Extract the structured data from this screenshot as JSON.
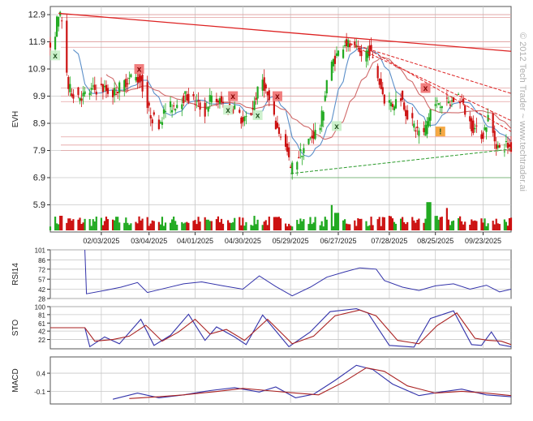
{
  "watermark": "© 2012 Tech Trader ~ www.techtrader.ai",
  "colors": {
    "up": "#22aa22",
    "down": "#cc1111",
    "grid": "#c8c8c8",
    "ma_short": "#5b8fc9",
    "ma_long": "#d06a6a",
    "trend": "#dd2222",
    "support": "#2a9a2a",
    "indicator_line": "#3333aa",
    "signal_line": "#aa2222",
    "sell_marker": "#f07070",
    "buy_marker": "#c8f0c8",
    "alert_marker": "#f5a030"
  },
  "chart_data": [
    {
      "type": "candlestick",
      "ylabel": "EVH",
      "y_ticks": [
        12.9,
        11.9,
        10.9,
        9.9,
        8.9,
        7.9,
        6.9,
        5.9
      ],
      "ylim": [
        4.9,
        13.2
      ],
      "x_ticks": [
        "02/03/2025",
        "03/04/2025",
        "04/01/2025",
        "04/30/2025",
        "05/29/2025",
        "06/27/2025",
        "07/28/2025",
        "08/25/2025",
        "09/23/2025"
      ],
      "x_range": [
        "2025-01-03",
        "2025-10-10"
      ],
      "grid": true,
      "close_path": [
        [
          "2025-01-03",
          11.5
        ],
        [
          "2025-01-06",
          12.3
        ],
        [
          "2025-01-08",
          13.0
        ],
        [
          "2025-01-10",
          12.6
        ],
        [
          "2025-01-14",
          10.2
        ],
        [
          "2025-01-17",
          10.0
        ],
        [
          "2025-01-23",
          9.9
        ],
        [
          "2025-01-28",
          10.1
        ],
        [
          "2025-02-03",
          10.2
        ],
        [
          "2025-02-10",
          10.0
        ],
        [
          "2025-02-17",
          10.4
        ],
        [
          "2025-02-21",
          10.6
        ],
        [
          "2025-02-27",
          10.5
        ],
        [
          "2025-03-03",
          9.5
        ],
        [
          "2025-03-06",
          9.1
        ],
        [
          "2025-03-10",
          8.9
        ],
        [
          "2025-03-14",
          9.4
        ],
        [
          "2025-03-20",
          9.6
        ],
        [
          "2025-03-26",
          9.9
        ],
        [
          "2025-04-01",
          9.7
        ],
        [
          "2025-04-07",
          9.3
        ],
        [
          "2025-04-10",
          9.8
        ],
        [
          "2025-04-16",
          9.7
        ],
        [
          "2025-04-22",
          9.4
        ],
        [
          "2025-04-25",
          9.5
        ],
        [
          "2025-04-30",
          8.9
        ],
        [
          "2025-05-05",
          9.3
        ],
        [
          "2025-05-08",
          9.9
        ],
        [
          "2025-05-12",
          10.5
        ],
        [
          "2025-05-15",
          9.9
        ],
        [
          "2025-05-20",
          8.8
        ],
        [
          "2025-05-23",
          8.5
        ],
        [
          "2025-05-27",
          7.8
        ],
        [
          "2025-05-29",
          7.2
        ],
        [
          "2025-06-02",
          7.6
        ],
        [
          "2025-06-06",
          8.0
        ],
        [
          "2025-06-11",
          8.4
        ],
        [
          "2025-06-16",
          8.8
        ],
        [
          "2025-06-18",
          9.5
        ],
        [
          "2025-06-20",
          10.5
        ],
        [
          "2025-06-24",
          11.2
        ],
        [
          "2025-06-27",
          11.5
        ],
        [
          "2025-07-01",
          11.9
        ],
        [
          "2025-07-07",
          11.6
        ],
        [
          "2025-07-11",
          11.4
        ],
        [
          "2025-07-16",
          11.6
        ],
        [
          "2025-07-21",
          10.6
        ],
        [
          "2025-07-25",
          9.8
        ],
        [
          "2025-07-30",
          9.6
        ],
        [
          "2025-08-04",
          9.9
        ],
        [
          "2025-08-08",
          9.2
        ],
        [
          "2025-08-13",
          8.7
        ],
        [
          "2025-08-18",
          8.5
        ],
        [
          "2025-08-22",
          9.4
        ],
        [
          "2025-08-27",
          9.7
        ],
        [
          "2025-09-02",
          9.6
        ],
        [
          "2025-09-08",
          9.9
        ],
        [
          "2025-09-11",
          9.5
        ],
        [
          "2025-09-15",
          8.9
        ],
        [
          "2025-09-19",
          8.6
        ],
        [
          "2025-09-23",
          8.5
        ],
        [
          "2025-09-26",
          9.1
        ],
        [
          "2025-09-30",
          8.3
        ],
        [
          "2025-10-03",
          7.9
        ],
        [
          "2025-10-07",
          8.1
        ],
        [
          "2025-10-10",
          8.0
        ]
      ],
      "trend_lines": [
        {
          "style": "solid",
          "from": [
            "2025-01-08",
            12.95
          ],
          "to": [
            "2025-10-10",
            11.55
          ]
        },
        {
          "style": "dashed",
          "from": [
            "2025-07-01",
            11.9
          ],
          "to": [
            "2025-10-10",
            10.0
          ]
        },
        {
          "style": "dashed",
          "from": [
            "2025-07-01",
            11.9
          ],
          "to": [
            "2025-10-10",
            9.0
          ]
        },
        {
          "style": "dashed",
          "from": [
            "2025-07-16",
            11.6
          ],
          "to": [
            "2025-10-10",
            8.6
          ]
        }
      ],
      "support_lines": [
        {
          "style": "dashed",
          "from": [
            "2025-05-29",
            7.05
          ],
          "to": [
            "2025-10-10",
            7.95
          ]
        },
        {
          "style": "solid",
          "from": [
            "2025-05-29",
            6.9
          ],
          "to": [
            "2025-10-10",
            6.9
          ]
        }
      ],
      "resistance_levels": [
        12.9,
        12.8,
        11.9,
        11.7,
        10.2,
        9.9,
        9.7,
        8.4,
        8.1,
        7.9
      ],
      "markers": [
        {
          "label": "x",
          "kind": "buy",
          "date": "2025-01-06",
          "y": 11.4
        },
        {
          "label": "x",
          "kind": "sell",
          "date": "2025-02-26",
          "y": 10.9
        },
        {
          "label": "x",
          "kind": "sell",
          "date": "2025-04-24",
          "y": 9.9
        },
        {
          "label": "x",
          "kind": "buy",
          "date": "2025-04-21",
          "y": 9.4
        },
        {
          "label": "x",
          "kind": "buy",
          "date": "2025-05-09",
          "y": 9.2
        },
        {
          "label": "x",
          "kind": "sell",
          "date": "2025-05-21",
          "y": 9.9
        },
        {
          "label": "x",
          "kind": "buy",
          "date": "2025-06-26",
          "y": 8.8
        },
        {
          "label": "x",
          "kind": "sell",
          "date": "2025-08-19",
          "y": 10.2
        },
        {
          "label": "!",
          "kind": "alert",
          "date": "2025-08-28",
          "y": 8.6
        }
      ]
    },
    {
      "type": "bar",
      "name": "volume",
      "description_colors": "green on up days, red on down days",
      "tall_bars": [
        [
          "2025-06-22",
          0.52
        ],
        [
          "2025-06-26",
          0.36
        ],
        [
          "2025-08-21",
          0.58
        ],
        [
          "2025-08-31",
          0.46
        ],
        [
          "2025-01-10",
          0.3
        ]
      ]
    },
    {
      "type": "line",
      "ylabel": "RSI14",
      "y_ticks": [
        101,
        86,
        72,
        57,
        42,
        28
      ],
      "ylim": [
        28,
        101
      ],
      "path": [
        [
          "2025-01-24",
          101
        ],
        [
          "2025-01-25",
          35
        ],
        [
          "2025-02-05",
          40
        ],
        [
          "2025-02-15",
          45
        ],
        [
          "2025-02-25",
          52
        ],
        [
          "2025-03-03",
          37
        ],
        [
          "2025-03-13",
          43
        ],
        [
          "2025-03-25",
          50
        ],
        [
          "2025-04-05",
          53
        ],
        [
          "2025-04-18",
          47
        ],
        [
          "2025-04-30",
          42
        ],
        [
          "2025-05-10",
          62
        ],
        [
          "2025-05-20",
          46
        ],
        [
          "2025-05-30",
          32
        ],
        [
          "2025-06-10",
          45
        ],
        [
          "2025-06-20",
          60
        ],
        [
          "2025-07-01",
          68
        ],
        [
          "2025-07-10",
          74
        ],
        [
          "2025-07-20",
          72
        ],
        [
          "2025-07-25",
          55
        ],
        [
          "2025-08-05",
          45
        ],
        [
          "2025-08-15",
          40
        ],
        [
          "2025-08-25",
          47
        ],
        [
          "2025-09-05",
          50
        ],
        [
          "2025-09-15",
          42
        ],
        [
          "2025-09-25",
          48
        ],
        [
          "2025-10-03",
          38
        ],
        [
          "2025-10-10",
          42
        ]
      ]
    },
    {
      "type": "line",
      "ylabel": "STO",
      "y_ticks": [
        100,
        81,
        61,
        42,
        22
      ],
      "ylim": [
        0,
        100
      ],
      "series": [
        {
          "role": "fast",
          "path": [
            [
              "2025-01-03",
              50
            ],
            [
              "2025-01-24",
              50
            ],
            [
              "2025-01-27",
              5
            ],
            [
              "2025-02-05",
              28
            ],
            [
              "2025-02-14",
              12
            ],
            [
              "2025-02-27",
              70
            ],
            [
              "2025-03-07",
              8
            ],
            [
              "2025-03-17",
              32
            ],
            [
              "2025-03-28",
              82
            ],
            [
              "2025-04-07",
              20
            ],
            [
              "2025-04-14",
              52
            ],
            [
              "2025-04-25",
              28
            ],
            [
              "2025-05-02",
              10
            ],
            [
              "2025-05-12",
              80
            ],
            [
              "2025-05-28",
              5
            ],
            [
              "2025-06-10",
              40
            ],
            [
              "2025-06-22",
              88
            ],
            [
              "2025-07-08",
              95
            ],
            [
              "2025-07-15",
              85
            ],
            [
              "2025-07-28",
              8
            ],
            [
              "2025-08-12",
              4
            ],
            [
              "2025-08-22",
              72
            ],
            [
              "2025-09-05",
              90
            ],
            [
              "2025-09-16",
              10
            ],
            [
              "2025-09-22",
              8
            ],
            [
              "2025-09-28",
              40
            ],
            [
              "2025-10-03",
              10
            ],
            [
              "2025-10-10",
              5
            ]
          ]
        },
        {
          "role": "slow",
          "path": [
            [
              "2025-01-03",
              50
            ],
            [
              "2025-01-24",
              50
            ],
            [
              "2025-01-30",
              18
            ],
            [
              "2025-02-10",
              22
            ],
            [
              "2025-02-20",
              30
            ],
            [
              "2025-03-02",
              56
            ],
            [
              "2025-03-12",
              18
            ],
            [
              "2025-03-22",
              40
            ],
            [
              "2025-04-01",
              70
            ],
            [
              "2025-04-10",
              35
            ],
            [
              "2025-04-20",
              46
            ],
            [
              "2025-05-01",
              20
            ],
            [
              "2025-05-15",
              70
            ],
            [
              "2025-05-30",
              12
            ],
            [
              "2025-06-12",
              30
            ],
            [
              "2025-06-25",
              78
            ],
            [
              "2025-07-10",
              92
            ],
            [
              "2025-07-20",
              78
            ],
            [
              "2025-08-02",
              20
            ],
            [
              "2025-08-15",
              12
            ],
            [
              "2025-08-26",
              55
            ],
            [
              "2025-09-07",
              85
            ],
            [
              "2025-09-18",
              25
            ],
            [
              "2025-09-26",
              20
            ],
            [
              "2025-10-04",
              18
            ],
            [
              "2025-10-10",
              10
            ]
          ]
        }
      ]
    },
    {
      "type": "line",
      "ylabel": "MACD",
      "y_ticks": [
        0.4,
        -0.1
      ],
      "ylim": [
        -0.45,
        0.85
      ],
      "series": [
        {
          "role": "macd",
          "path": [
            [
              "2025-02-10",
              -0.32
            ],
            [
              "2025-02-25",
              -0.15
            ],
            [
              "2025-03-10",
              -0.28
            ],
            [
              "2025-03-25",
              -0.2
            ],
            [
              "2025-04-10",
              -0.08
            ],
            [
              "2025-04-25",
              -0.0
            ],
            [
              "2025-05-10",
              -0.12
            ],
            [
              "2025-05-20",
              0.02
            ],
            [
              "2025-06-01",
              -0.28
            ],
            [
              "2025-06-12",
              -0.18
            ],
            [
              "2025-06-25",
              0.2
            ],
            [
              "2025-07-08",
              0.62
            ],
            [
              "2025-07-18",
              0.5
            ],
            [
              "2025-07-30",
              0.1
            ],
            [
              "2025-08-15",
              -0.22
            ],
            [
              "2025-08-28",
              -0.12
            ],
            [
              "2025-09-10",
              -0.04
            ],
            [
              "2025-09-25",
              -0.2
            ],
            [
              "2025-10-10",
              -0.25
            ]
          ]
        },
        {
          "role": "signal",
          "path": [
            [
              "2025-02-20",
              -0.3
            ],
            [
              "2025-03-10",
              -0.25
            ],
            [
              "2025-03-25",
              -0.2
            ],
            [
              "2025-04-15",
              -0.1
            ],
            [
              "2025-04-30",
              -0.02
            ],
            [
              "2025-05-15",
              -0.08
            ],
            [
              "2025-05-30",
              -0.14
            ],
            [
              "2025-06-15",
              -0.2
            ],
            [
              "2025-06-30",
              0.15
            ],
            [
              "2025-07-14",
              0.55
            ],
            [
              "2025-07-25",
              0.45
            ],
            [
              "2025-08-08",
              0.05
            ],
            [
              "2025-08-25",
              -0.15
            ],
            [
              "2025-09-10",
              -0.1
            ],
            [
              "2025-09-25",
              -0.15
            ],
            [
              "2025-10-10",
              -0.22
            ]
          ]
        }
      ]
    }
  ]
}
